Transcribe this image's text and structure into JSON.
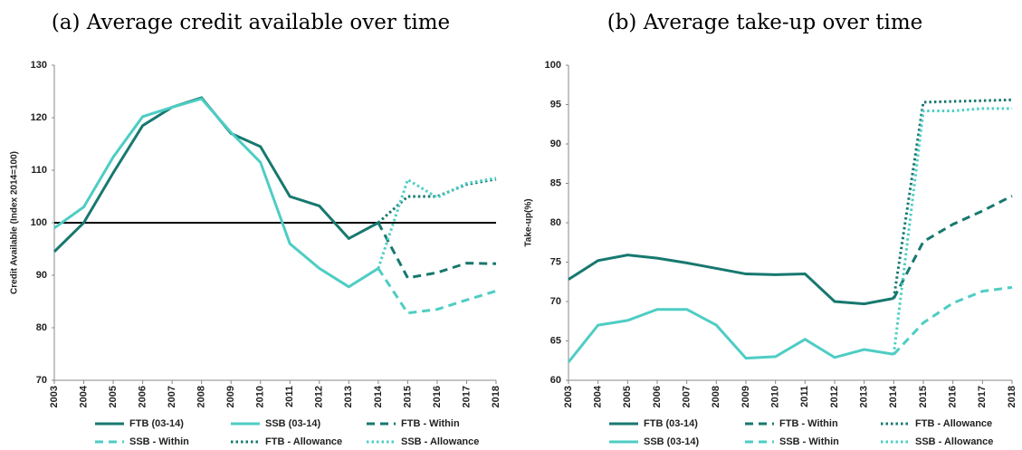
{
  "chart_data": [
    {
      "type": "line",
      "title": "(a) Average credit available over time",
      "y_label": "Credit Available (Index 2014=100)",
      "categories": [
        "2003",
        "2004",
        "2005",
        "2006",
        "2007",
        "2008",
        "2009",
        "2010",
        "2011",
        "2012",
        "2013",
        "2014",
        "2015",
        "2016",
        "2017",
        "2018"
      ],
      "ylim": [
        70,
        130
      ],
      "yticks": [
        70,
        80,
        90,
        100,
        110,
        120,
        130
      ],
      "reference_line": 100,
      "reference_color": "#000000",
      "series": [
        {
          "name": "FTB (03-14)",
          "color": "#17786f",
          "dash": "solid",
          "values": [
            94.5,
            100,
            109.5,
            118.5,
            122,
            123.8,
            117,
            114.5,
            105,
            103.2,
            97,
            100,
            null,
            null,
            null,
            null
          ]
        },
        {
          "name": "SSB (03-14)",
          "color": "#4ecdc4",
          "dash": "solid",
          "values": [
            99,
            103,
            112.5,
            120.2,
            122,
            123.6,
            117.2,
            111.5,
            96,
            91.3,
            87.8,
            91.3,
            null,
            null,
            null,
            null
          ]
        },
        {
          "name": "FTB - Within",
          "color": "#17786f",
          "dash": "dashed",
          "values": [
            null,
            null,
            null,
            null,
            null,
            null,
            null,
            null,
            null,
            null,
            null,
            100,
            89.5,
            90.5,
            92.3,
            92.2
          ]
        },
        {
          "name": "SSB - Within",
          "color": "#4ecdc4",
          "dash": "dashed",
          "values": [
            null,
            null,
            null,
            null,
            null,
            null,
            null,
            null,
            null,
            null,
            null,
            91.3,
            82.8,
            83.5,
            85.3,
            87
          ]
        },
        {
          "name": "FTB - Allowance",
          "color": "#17786f",
          "dash": "dotted",
          "values": [
            null,
            null,
            null,
            null,
            null,
            null,
            null,
            null,
            null,
            null,
            null,
            100,
            105,
            105,
            107.3,
            108.3
          ]
        },
        {
          "name": "SSB - Allowance",
          "color": "#4ecdc4",
          "dash": "dotted",
          "values": [
            null,
            null,
            null,
            null,
            null,
            null,
            null,
            null,
            null,
            null,
            null,
            91.3,
            108.2,
            104.8,
            107.5,
            108.5
          ]
        }
      ]
    },
    {
      "type": "line",
      "title": "(b) Average take-up over time",
      "y_label": "Take-up(%)",
      "categories": [
        "2003",
        "2004",
        "2005",
        "2006",
        "2007",
        "2008",
        "2009",
        "2010",
        "2011",
        "2012",
        "2013",
        "2014",
        "2015",
        "2016",
        "2017",
        "2018"
      ],
      "ylim": [
        60,
        100
      ],
      "yticks": [
        60,
        65,
        70,
        75,
        80,
        85,
        90,
        95,
        100
      ],
      "series": [
        {
          "name": "FTB (03-14)",
          "color": "#17786f",
          "dash": "solid",
          "values": [
            72.8,
            75.2,
            75.9,
            75.5,
            74.9,
            74.2,
            73.5,
            73.4,
            73.5,
            70,
            69.7,
            70.4,
            null,
            null,
            null,
            null
          ]
        },
        {
          "name": "FTB - Within",
          "color": "#17786f",
          "dash": "dashed",
          "values": [
            null,
            null,
            null,
            null,
            null,
            null,
            null,
            null,
            null,
            null,
            null,
            70.4,
            77.6,
            79.8,
            81.5,
            83.4
          ]
        },
        {
          "name": "FTB - Allowance",
          "color": "#17786f",
          "dash": "dotted",
          "values": [
            null,
            null,
            null,
            null,
            null,
            null,
            null,
            null,
            null,
            null,
            null,
            70.4,
            95.3,
            95.4,
            95.5,
            95.6
          ]
        },
        {
          "name": "SSB (03-14)",
          "color": "#4ecdc4",
          "dash": "solid",
          "values": [
            62.3,
            67,
            67.6,
            69,
            69,
            67,
            62.8,
            63,
            65.2,
            62.9,
            63.9,
            63.3,
            null,
            null,
            null,
            null
          ]
        },
        {
          "name": "SSB - Within",
          "color": "#4ecdc4",
          "dash": "dashed",
          "values": [
            null,
            null,
            null,
            null,
            null,
            null,
            null,
            null,
            null,
            null,
            null,
            63.3,
            67.3,
            69.8,
            71.3,
            71.8
          ]
        },
        {
          "name": "SSB - Allowance",
          "color": "#4ecdc4",
          "dash": "dotted",
          "values": [
            null,
            null,
            null,
            null,
            null,
            null,
            null,
            null,
            null,
            null,
            null,
            63.3,
            94.2,
            94.2,
            94.5,
            94.5
          ]
        }
      ]
    }
  ]
}
